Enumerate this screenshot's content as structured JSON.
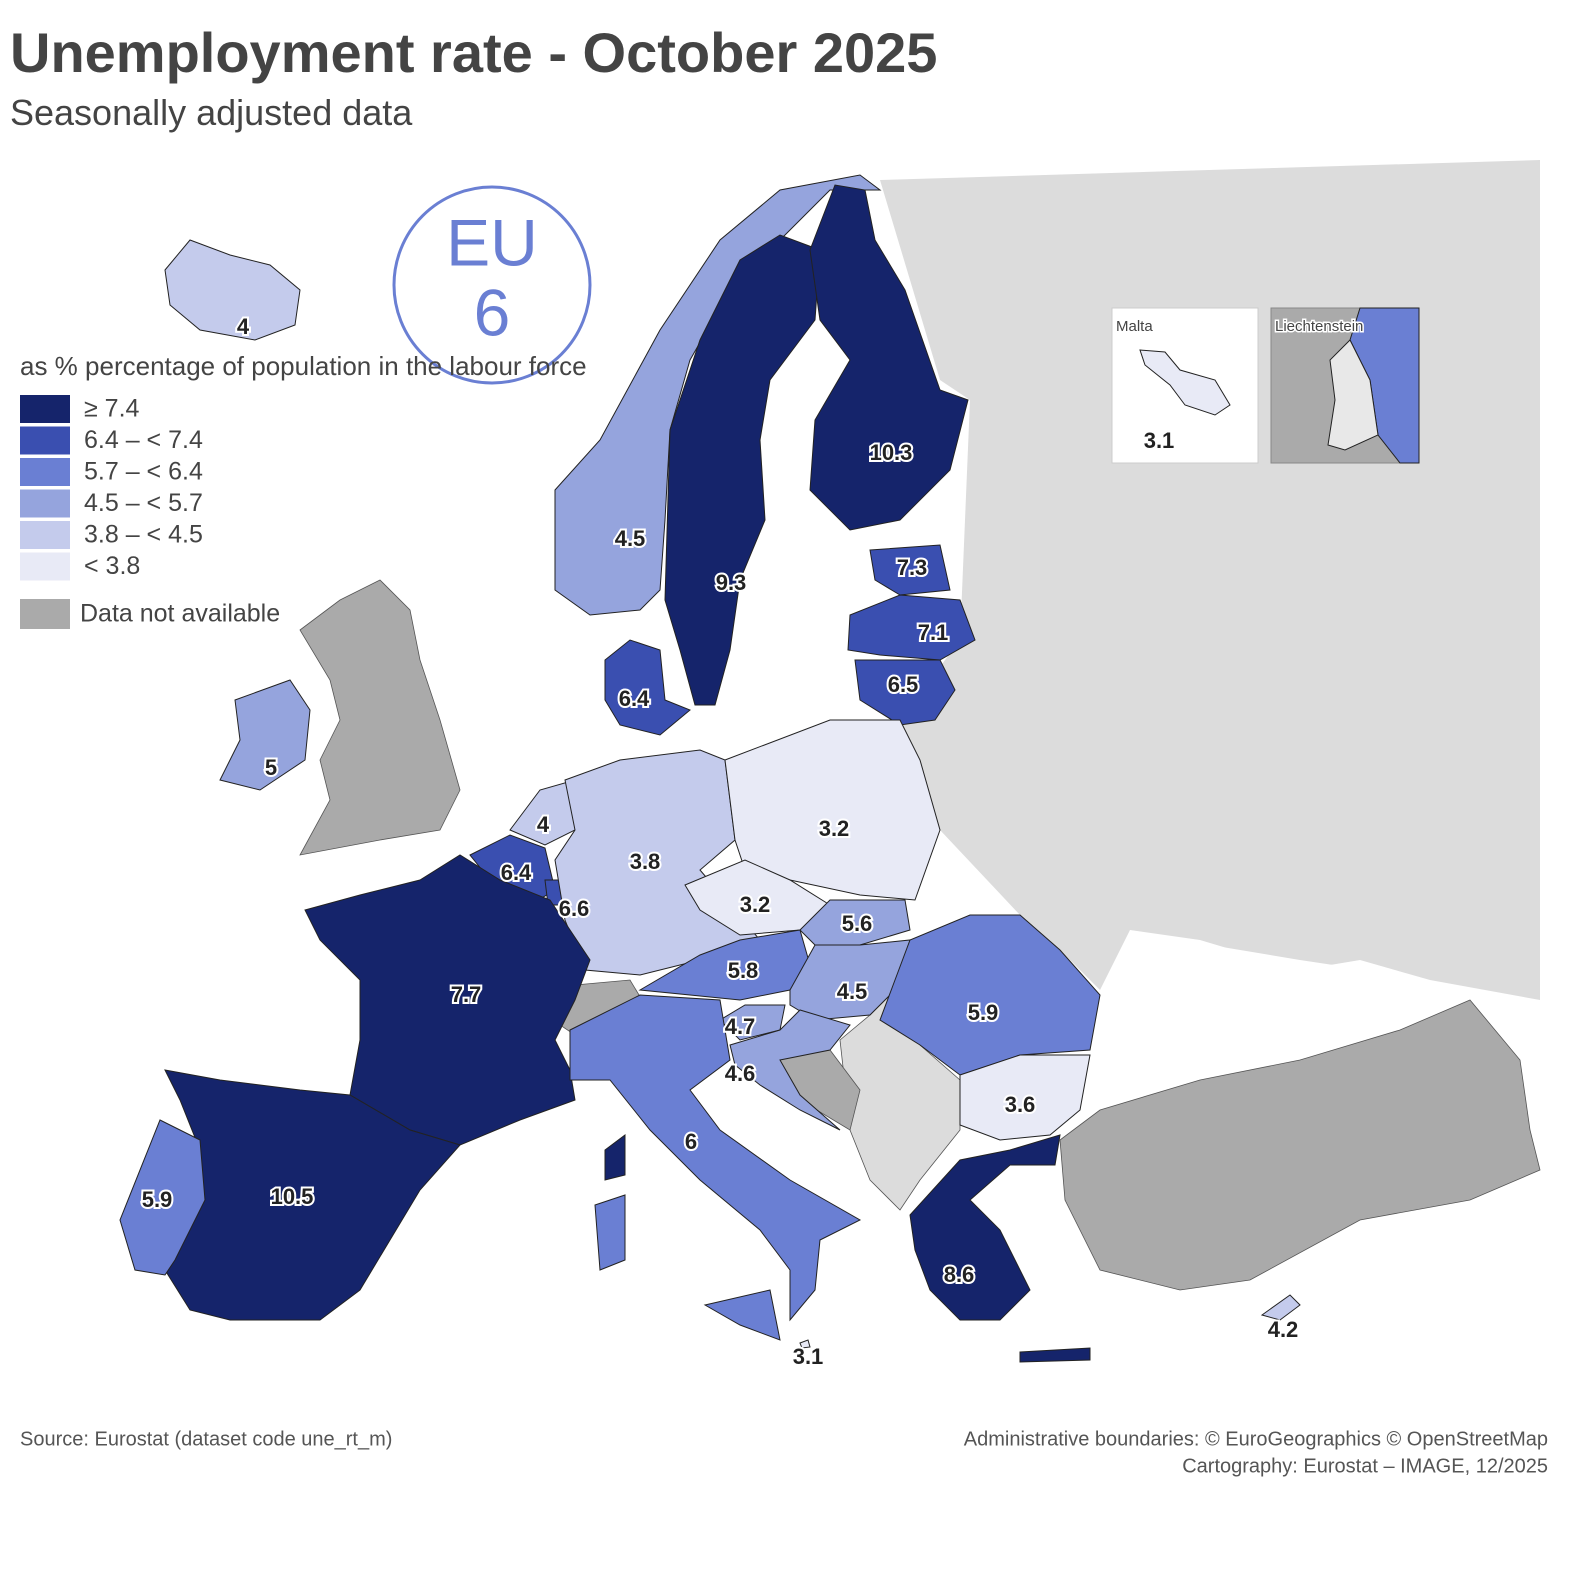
{
  "title": "Unemployment rate - October 2025",
  "subtitle": "Seasonally adjusted data",
  "eu": {
    "label": "EU",
    "value": 6,
    "color": "#6a7fd3"
  },
  "legend": {
    "title": "as % percentage of population in the labour force",
    "classes": [
      {
        "label": "≥ 7.4",
        "color": "#15246b"
      },
      {
        "label": "6.4 – < 7.4",
        "color": "#3a4fb0"
      },
      {
        "label": "5.7 – < 6.4",
        "color": "#6a7fd3"
      },
      {
        "label": "4.5 – < 5.7",
        "color": "#95a4dd"
      },
      {
        "label": "3.8 – < 4.5",
        "color": "#c4cbec"
      },
      {
        "label": "< 3.8",
        "color": "#e8eaf6"
      }
    ],
    "na": {
      "label": "Data not available",
      "color": "#aaaaaa"
    }
  },
  "regions": [
    {
      "value": 4,
      "color": "#c4cbec"
    },
    {
      "value": 4.5,
      "color": "#95a4dd"
    },
    {
      "value": 9.3,
      "color": "#15246b"
    },
    {
      "value": 10.3,
      "color": "#15246b"
    },
    {
      "value": 7.3,
      "color": "#3a4fb0"
    },
    {
      "value": 7.1,
      "color": "#3a4fb0"
    },
    {
      "value": 6.5,
      "color": "#3a4fb0"
    },
    {
      "value": 6.4,
      "color": "#3a4fb0"
    },
    {
      "value": 5,
      "color": "#95a4dd"
    },
    {
      "value": 4,
      "color": "#c4cbec"
    },
    {
      "value": 6.4,
      "color": "#3a4fb0"
    },
    {
      "value": 6.6,
      "color": "#3a4fb0"
    },
    {
      "value": 3.8,
      "color": "#c4cbec"
    },
    {
      "value": 3.2,
      "color": "#e8eaf6"
    },
    {
      "value": 3.2,
      "color": "#e8eaf6"
    },
    {
      "value": 5.6,
      "color": "#95a4dd"
    },
    {
      "value": 5.8,
      "color": "#6a7fd3"
    },
    {
      "value": 4.5,
      "color": "#95a4dd"
    },
    {
      "value": 5.9,
      "color": "#6a7fd3"
    },
    {
      "value": 4.7,
      "color": "#95a4dd"
    },
    {
      "value": 4.6,
      "color": "#95a4dd"
    },
    {
      "value": 3.6,
      "color": "#e8eaf6"
    },
    {
      "value": 7.7,
      "color": "#15246b"
    },
    {
      "value": 10.5,
      "color": "#15246b"
    },
    {
      "value": 5.9,
      "color": "#6a7fd3"
    },
    {
      "value": 6,
      "color": "#6a7fd3"
    },
    {
      "value": 8.6,
      "color": "#15246b"
    },
    {
      "value": 3.1,
      "color": "#e8eaf6"
    },
    {
      "value": 4.2,
      "color": "#c4cbec"
    }
  ],
  "insets": [
    {
      "title": "Malta"
    },
    {
      "title": "Liechtenstein"
    }
  ],
  "footer": {
    "source": "Source: Eurostat (dataset code une_rt_m)",
    "credits": [
      "Administrative boundaries: © EuroGeographics © OpenStreetMap",
      "Cartography: Eurostat – IMAGE, 12/2025"
    ]
  }
}
